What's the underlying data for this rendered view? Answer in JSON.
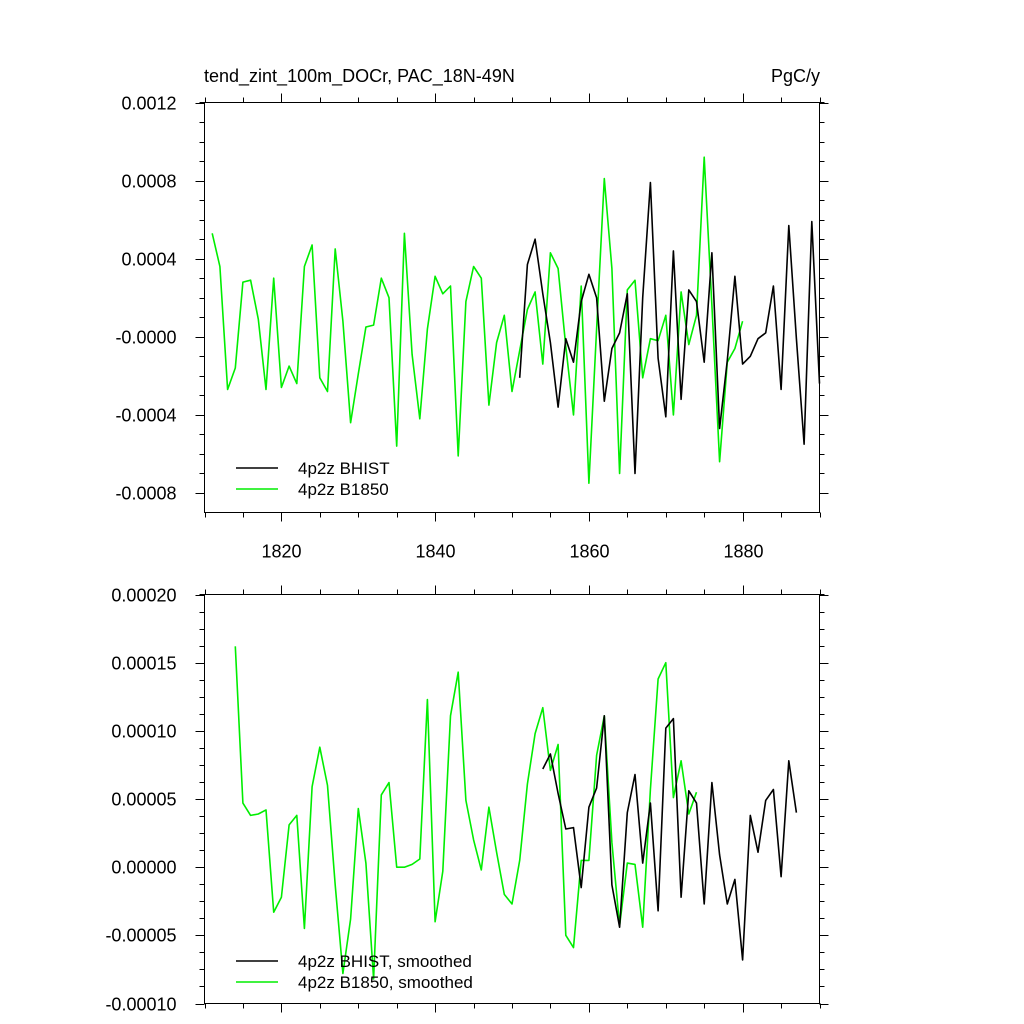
{
  "colors": {
    "bhist": "#000000",
    "b1850": "#00ee00"
  },
  "chart_data": [
    {
      "type": "line",
      "title": "tend_zint_100m_DOCr, PAC_18N-49N",
      "units": "PgC/y",
      "xlim": [
        1810,
        1890
      ],
      "ylim": [
        -0.0009,
        0.0012
      ],
      "x_ticks": [
        1820,
        1840,
        1860,
        1880
      ],
      "x_tick_labels": [
        "1820",
        "1840",
        "1860",
        "1880"
      ],
      "y_ticks": [
        -0.0008,
        -0.0004,
        0.0,
        0.0004,
        0.0008,
        0.0012
      ],
      "y_tick_labels": [
        "-0.0008",
        "-0.0004",
        "-0.0000",
        "0.0004",
        "0.0008",
        "0.0012"
      ],
      "legend": [
        "4p2z BHIST",
        "4p2z B1850"
      ],
      "series": [
        {
          "name": "4p2z BHIST",
          "color_key": "bhist",
          "x_start": 1851,
          "x_step": 1,
          "values": [
            -0.00021,
            0.00037,
            0.0005,
            0.00022,
            -3e-05,
            -0.00036,
            -1e-05,
            -0.00013,
            0.00018,
            0.00032,
            0.0002,
            -0.00033,
            -6e-05,
            2e-05,
            0.00022,
            -0.0007,
            0.0002,
            0.00079,
            -0.00011,
            -0.00041,
            0.00044,
            -0.00032,
            0.00024,
            0.00018,
            -0.00013,
            0.00043,
            -0.00047,
            -0.00012,
            0.00031,
            -0.00014,
            -0.0001,
            -1e-05,
            2e-05,
            0.00026,
            -0.00027,
            0.00057,
            -1e-05,
            -0.00055,
            0.00059,
            -0.00024
          ]
        },
        {
          "name": "4p2z B1850",
          "color_key": "b1850",
          "x_start": 1811,
          "x_step": 1,
          "values": [
            0.00053,
            0.00036,
            -0.00027,
            -0.00016,
            0.00028,
            0.00029,
            9e-05,
            -0.00027,
            0.0003,
            -0.00026,
            -0.00015,
            -0.00024,
            0.00036,
            0.00047,
            -0.00021,
            -0.00028,
            0.00045,
            8e-05,
            -0.00044,
            -0.00019,
            5e-05,
            6e-05,
            0.0003,
            0.0002,
            -0.00056,
            0.00053,
            -9e-05,
            -0.00042,
            4e-05,
            0.00031,
            0.00022,
            0.00026,
            -0.00061,
            0.00018,
            0.00036,
            0.0003,
            -0.00035,
            -3e-05,
            0.00011,
            -0.00028,
            -7e-05,
            0.00014,
            0.00023,
            -0.00014,
            0.00043,
            0.00035,
            -5e-05,
            -0.0004,
            0.00026,
            -0.00075,
            4e-05,
            0.00081,
            0.00035,
            -0.0007,
            0.00024,
            0.00029,
            -0.00021,
            -1e-05,
            -2e-05,
            0.00011,
            -0.0004,
            0.00023,
            -4e-05,
            0.00011,
            0.00092,
            0.00016,
            -0.00064,
            -0.00013,
            -6e-05,
            8e-05
          ]
        }
      ]
    },
    {
      "type": "line",
      "title": "",
      "xlim": [
        1810,
        1890
      ],
      "ylim": [
        -0.0001,
        0.0002
      ],
      "x_ticks": [
        1820,
        1840,
        1860,
        1880
      ],
      "x_tick_labels": [
        "",
        "",
        "",
        ""
      ],
      "y_ticks": [
        -0.0001,
        -5e-05,
        0.0,
        5e-05,
        0.0001,
        0.00015,
        0.0002
      ],
      "y_tick_labels": [
        "-0.00010",
        "-0.00005",
        "0.00000",
        "0.00005",
        "0.00010",
        "0.00015",
        "0.00020"
      ],
      "legend": [
        "4p2z BHIST, smoothed",
        "4p2z B1850, smoothed"
      ],
      "series": [
        {
          "name": "4p2z BHIST, smoothed",
          "color_key": "bhist",
          "x_start": 1854,
          "x_step": 1,
          "values": [
            7.2e-05,
            8.3e-05,
            5.4e-05,
            2.8e-05,
            2.9e-05,
            -1.5e-05,
            4.4e-05,
            5.8e-05,
            0.000111,
            -1.3e-05,
            -4.4e-05,
            4e-05,
            6.8e-05,
            3e-06,
            4.7e-05,
            -3.2e-05,
            0.000102,
            0.000109,
            -2.2e-05,
            5.6e-05,
            4.7e-05,
            -2.7e-05,
            6.2e-05,
            9e-06,
            -2.7e-05,
            -9e-06,
            -6.8e-05,
            3.8e-05,
            1.1e-05,
            4.9e-05,
            5.7e-05,
            -7e-06,
            7.8e-05,
            4e-05
          ]
        },
        {
          "name": "4p2z B1850, smoothed",
          "color_key": "b1850",
          "x_start": 1814,
          "x_step": 1,
          "values": [
            0.000162,
            4.7e-05,
            3.8e-05,
            3.9e-05,
            4.2e-05,
            -3.3e-05,
            -2.2e-05,
            3.1e-05,
            3.8e-05,
            -4.5e-05,
            5.9e-05,
            8.8e-05,
            6e-05,
            -1.3e-05,
            -7.8e-05,
            -3.8e-05,
            4.3e-05,
            3e-06,
            -8.2e-05,
            5.3e-05,
            6.2e-05,
            0.0,
            0.0,
            2e-06,
            6e-06,
            0.000123,
            -4e-05,
            -3e-06,
            0.000111,
            0.000143,
            4.9e-05,
            2e-05,
            -2e-06,
            4.4e-05,
            1.1e-05,
            -2e-05,
            -2.7e-05,
            5e-06,
            6.1e-05,
            9.8e-05,
            0.000117,
            7.1e-05,
            9e-05,
            -5e-05,
            -5.9e-05,
            5e-06,
            5e-06,
            8.2e-05,
            0.000111,
            1.8e-05,
            -4.3e-05,
            3e-06,
            2e-06,
            -4.4e-05,
            5.7e-05,
            0.000138,
            0.00015,
            5.1e-05,
            7.8e-05,
            3.9e-05,
            5.5e-05
          ]
        }
      ]
    }
  ]
}
